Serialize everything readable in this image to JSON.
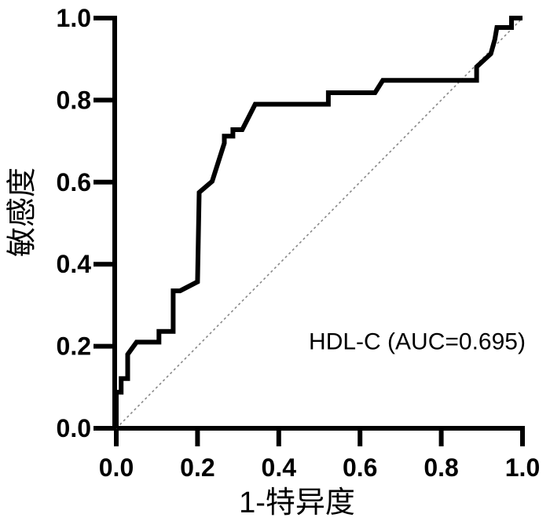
{
  "figure": {
    "background_color": "#ffffff",
    "text_color": "#000000"
  },
  "chart_data": {
    "type": "line",
    "subtype": "roc-curve",
    "title": "",
    "xlabel": "1-特异度",
    "ylabel": "敏感度",
    "xlim": [
      0.0,
      1.0
    ],
    "ylim": [
      0.0,
      1.0
    ],
    "grid": false,
    "legend_position": "none",
    "annotation": "HDL-C (AUC=0.695)",
    "x_tick_values": [
      0.0,
      0.2,
      0.4,
      0.6,
      0.8,
      1.0
    ],
    "x_tick_labels": [
      "0.0",
      "0.2",
      "0.4",
      "0.6",
      "0.8",
      "1.0"
    ],
    "y_tick_values": [
      0.0,
      0.2,
      0.4,
      0.6,
      0.8,
      1.0
    ],
    "y_tick_labels": [
      "0.0",
      "0.2",
      "0.4",
      "0.6",
      "0.8",
      "1.0"
    ],
    "series": [
      {
        "name": "HDL-C",
        "auc": 0.695,
        "color": "#000000",
        "line_width": 6,
        "points": [
          [
            0.0,
            0.0
          ],
          [
            0.0,
            0.088
          ],
          [
            0.012,
            0.088
          ],
          [
            0.012,
            0.121
          ],
          [
            0.028,
            0.121
          ],
          [
            0.028,
            0.18
          ],
          [
            0.05,
            0.21
          ],
          [
            0.105,
            0.21
          ],
          [
            0.105,
            0.236
          ],
          [
            0.14,
            0.236
          ],
          [
            0.14,
            0.335
          ],
          [
            0.157,
            0.335
          ],
          [
            0.2,
            0.357
          ],
          [
            0.204,
            0.575
          ],
          [
            0.236,
            0.602
          ],
          [
            0.266,
            0.695
          ],
          [
            0.266,
            0.712
          ],
          [
            0.287,
            0.712
          ],
          [
            0.287,
            0.728
          ],
          [
            0.31,
            0.728
          ],
          [
            0.342,
            0.79
          ],
          [
            0.522,
            0.79
          ],
          [
            0.522,
            0.818
          ],
          [
            0.637,
            0.818
          ],
          [
            0.656,
            0.848
          ],
          [
            0.887,
            0.848
          ],
          [
            0.887,
            0.881
          ],
          [
            0.922,
            0.913
          ],
          [
            0.932,
            0.948
          ],
          [
            0.937,
            0.977
          ],
          [
            0.973,
            0.977
          ],
          [
            0.973,
            1.0
          ],
          [
            1.0,
            1.0
          ]
        ]
      }
    ],
    "reference_line": {
      "from": [
        0.0,
        0.0
      ],
      "to": [
        1.0,
        1.0
      ],
      "style": "dashed",
      "color": "#878787"
    }
  }
}
